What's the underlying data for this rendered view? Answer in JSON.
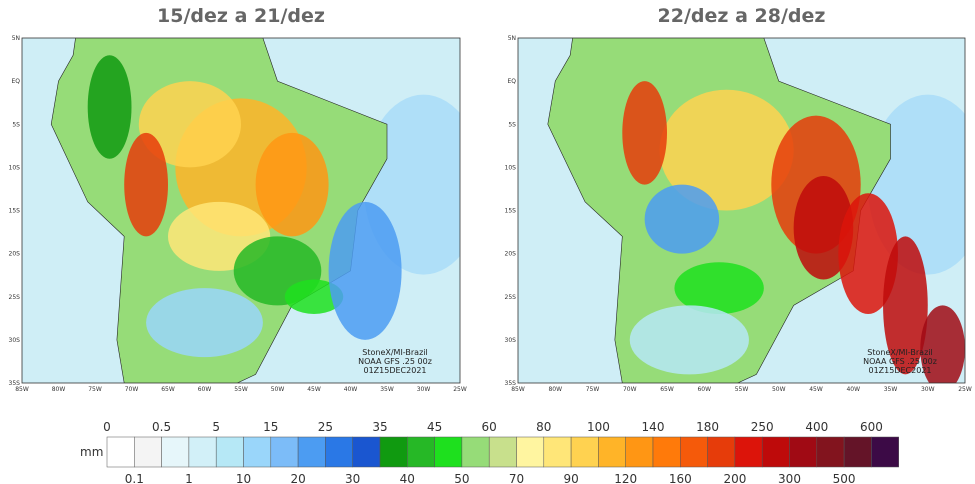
{
  "panels": [
    {
      "title": "15/dez a 21/dez",
      "credit": [
        "StoneX/MI-Brazil",
        "NOAA GFS .25 00z",
        "01Z15DEC2021"
      ]
    },
    {
      "title": "22/dez a 28/dez",
      "credit": [
        "StoneX/MI-Brazil",
        "NOAA GFS .25 00z",
        "01Z15DEC2021"
      ]
    }
  ],
  "lat_labels": [
    "5N",
    "EQ",
    "5S",
    "10S",
    "15S",
    "20S",
    "25S",
    "30S",
    "35S"
  ],
  "lon_labels": [
    "85W",
    "80W",
    "75W",
    "70W",
    "65W",
    "60W",
    "55W",
    "50W",
    "45W",
    "40W",
    "35W",
    "30W",
    "25W"
  ],
  "colorbar": {
    "unit": "mm",
    "ticks": [
      0,
      0.1,
      0.5,
      1,
      5,
      10,
      15,
      20,
      25,
      30,
      35,
      40,
      45,
      50,
      60,
      70,
      80,
      90,
      100,
      120,
      140,
      160,
      180,
      200,
      250,
      300,
      400,
      500,
      600
    ],
    "colors": [
      "#ffffff",
      "#f4f4f4",
      "#e6f6fa",
      "#d2f0f8",
      "#b6e8f6",
      "#9ad6fa",
      "#7cbcf8",
      "#4c9cf2",
      "#2a78e6",
      "#1a56d0",
      "#109a10",
      "#26b826",
      "#1ee01e",
      "#96dc78",
      "#c8e08c",
      "#fff5a0",
      "#ffe678",
      "#ffd250",
      "#ffb428",
      "#ff9614",
      "#ff7a0a",
      "#f55a0a",
      "#e63c0a",
      "#dc140a",
      "#be0a0a",
      "#a00a14",
      "#82141e",
      "#641428",
      "#3c0a46"
    ]
  }
}
